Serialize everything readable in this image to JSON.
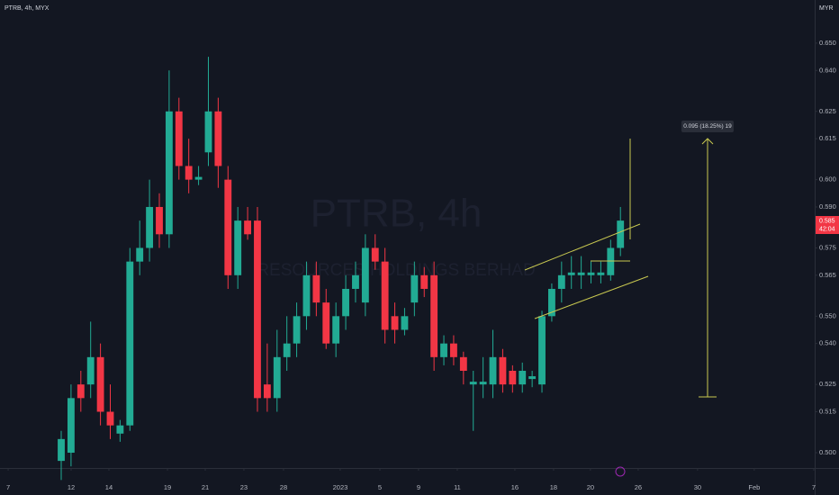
{
  "chart_data": {
    "type": "candlestick",
    "title": "PTRB, 4h, MYX",
    "currency": "MYR",
    "watermark": "PTRB, 4h",
    "watermark_subtitle": "RESOURCES HOLDINGS BERHAD",
    "last_price": "0.585",
    "countdown": "42:04",
    "measurement": "0.095 (18.25%) 19",
    "up_color": "#22ab94",
    "down_color": "#f23645",
    "open": [
      0.497,
      0.5,
      0.525,
      0.525,
      0.535,
      0.515,
      0.507,
      0.51,
      0.57,
      0.575,
      0.59,
      0.58,
      0.625,
      0.605,
      0.6,
      0.61,
      0.625,
      0.6,
      0.565,
      0.585,
      0.585,
      0.525,
      0.52,
      0.535,
      0.54,
      0.55,
      0.565,
      0.555,
      0.54,
      0.55,
      0.56,
      0.555,
      0.575,
      0.57,
      0.55,
      0.545,
      0.555,
      0.565,
      0.565,
      0.535,
      0.54,
      0.535,
      0.525,
      0.525,
      0.525,
      0.535,
      0.53,
      0.525,
      0.527,
      0.525,
      0.55,
      0.56,
      0.565,
      0.565,
      0.565,
      0.565,
      0.565,
      0.575
    ],
    "high": [
      0.508,
      0.525,
      0.53,
      0.548,
      0.54,
      0.525,
      0.512,
      0.575,
      0.585,
      0.6,
      0.595,
      0.64,
      0.63,
      0.615,
      0.605,
      0.645,
      0.63,
      0.605,
      0.59,
      0.59,
      0.59,
      0.54,
      0.545,
      0.55,
      0.555,
      0.57,
      0.57,
      0.56,
      0.555,
      0.565,
      0.57,
      0.58,
      0.58,
      0.575,
      0.555,
      0.553,
      0.57,
      0.568,
      0.57,
      0.543,
      0.543,
      0.537,
      0.53,
      0.535,
      0.545,
      0.538,
      0.532,
      0.533,
      0.53,
      0.552,
      0.562,
      0.57,
      0.572,
      0.572,
      0.57,
      0.57,
      0.578,
      0.59
    ],
    "low": [
      0.49,
      0.495,
      0.515,
      0.52,
      0.51,
      0.505,
      0.504,
      0.508,
      0.565,
      0.57,
      0.575,
      0.575,
      0.6,
      0.595,
      0.598,
      0.605,
      0.597,
      0.56,
      0.56,
      0.578,
      0.515,
      0.515,
      0.515,
      0.53,
      0.535,
      0.545,
      0.55,
      0.538,
      0.535,
      0.545,
      0.555,
      0.55,
      0.567,
      0.54,
      0.54,
      0.543,
      0.55,
      0.557,
      0.53,
      0.532,
      0.532,
      0.525,
      0.508,
      0.52,
      0.52,
      0.522,
      0.522,
      0.522,
      0.524,
      0.522,
      0.548,
      0.555,
      0.56,
      0.56,
      0.562,
      0.562,
      0.563,
      0.572
    ],
    "close": [
      0.505,
      0.52,
      0.52,
      0.535,
      0.515,
      0.51,
      0.51,
      0.57,
      0.575,
      0.59,
      0.58,
      0.625,
      0.605,
      0.6,
      0.601,
      0.625,
      0.605,
      0.565,
      0.585,
      0.58,
      0.52,
      0.52,
      0.535,
      0.54,
      0.55,
      0.565,
      0.555,
      0.54,
      0.55,
      0.56,
      0.565,
      0.575,
      0.57,
      0.545,
      0.545,
      0.55,
      0.565,
      0.56,
      0.535,
      0.54,
      0.535,
      0.53,
      0.526,
      0.526,
      0.535,
      0.525,
      0.525,
      0.53,
      0.528,
      0.55,
      0.56,
      0.565,
      0.566,
      0.566,
      0.566,
      0.566,
      0.575,
      0.585
    ],
    "xlim": [
      -6.24,
      76.8
    ],
    "xticks": [
      {
        "value": -5.41,
        "label": "7"
      },
      {
        "value": 1.01,
        "label": "12"
      },
      {
        "value": 4.86,
        "label": "14"
      },
      {
        "value": 10.83,
        "label": "19"
      },
      {
        "value": 14.68,
        "label": "21"
      },
      {
        "value": 18.62,
        "label": "23"
      },
      {
        "value": 22.66,
        "label": "28"
      },
      {
        "value": 28.44,
        "label": "2023"
      },
      {
        "value": 32.48,
        "label": "5"
      },
      {
        "value": 36.42,
        "label": "9"
      },
      {
        "value": 40.37,
        "label": "11"
      },
      {
        "value": 46.24,
        "label": "16"
      },
      {
        "value": 50.18,
        "label": "18"
      },
      {
        "value": 53.94,
        "label": "20"
      },
      {
        "value": 58.81,
        "label": "26"
      },
      {
        "value": 64.86,
        "label": "30"
      },
      {
        "value": 70.64,
        "label": "Feb"
      },
      {
        "value": 76.7,
        "label": "7"
      }
    ],
    "ylim": [
      0.4944,
      0.6658
    ],
    "yticks": [
      {
        "value": 0.5,
        "label": "0.500"
      },
      {
        "value": 0.515,
        "label": "0.515"
      },
      {
        "value": 0.525,
        "label": "0.525"
      },
      {
        "value": 0.54,
        "label": "0.540"
      },
      {
        "value": 0.55,
        "label": "0.550"
      },
      {
        "value": 0.565,
        "label": "0.565"
      },
      {
        "value": 0.575,
        "label": "0.575"
      },
      {
        "value": 0.59,
        "label": "0.590"
      },
      {
        "value": 0.6,
        "label": "0.600"
      },
      {
        "value": 0.615,
        "label": "0.615"
      },
      {
        "value": 0.625,
        "label": "0.625"
      },
      {
        "value": 0.64,
        "label": "0.640"
      },
      {
        "value": 0.65,
        "label": "0.650"
      }
    ]
  }
}
